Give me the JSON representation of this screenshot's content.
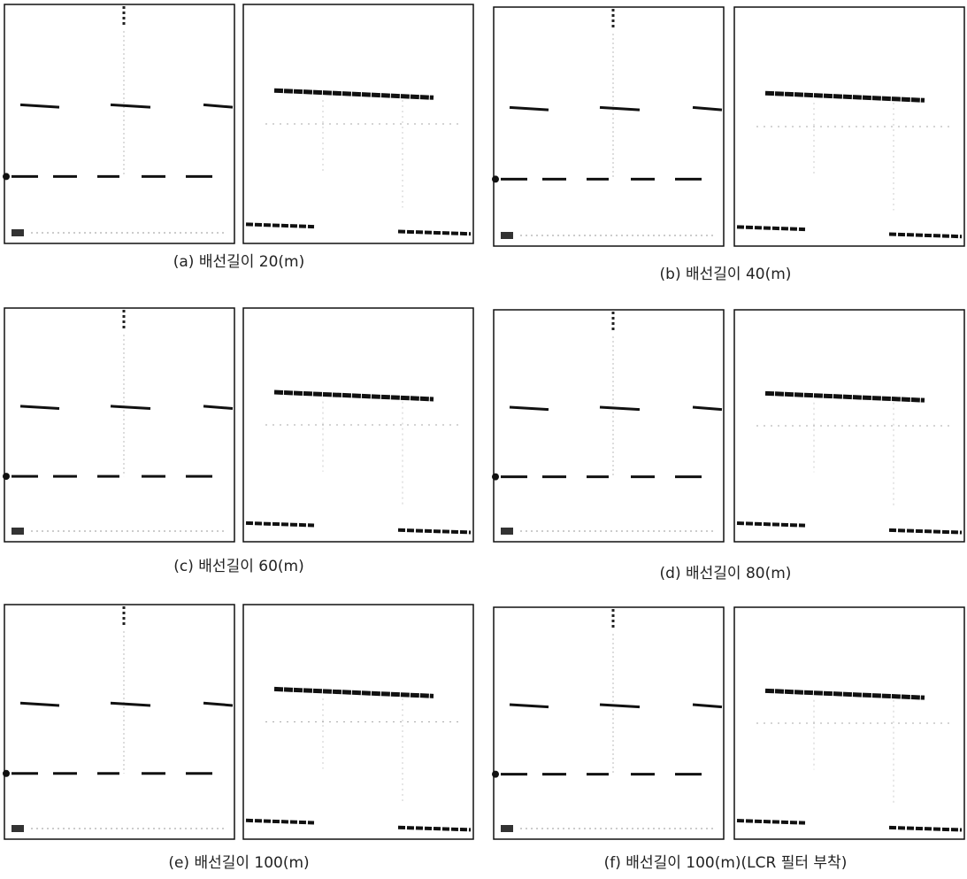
{
  "figure": {
    "panels": [
      {
        "caption": "(a) 배선길이 20(m)"
      },
      {
        "caption": "(b) 배선길이 40(m)"
      },
      {
        "caption": "(c) 배선길이 60(m)"
      },
      {
        "caption": "(d) 배선길이 80(m)"
      },
      {
        "caption": "(e) 배선길이 100(m)"
      },
      {
        "caption": "(f) 배선길이 100(m)(LCR 필터 부착)"
      }
    ]
  }
}
